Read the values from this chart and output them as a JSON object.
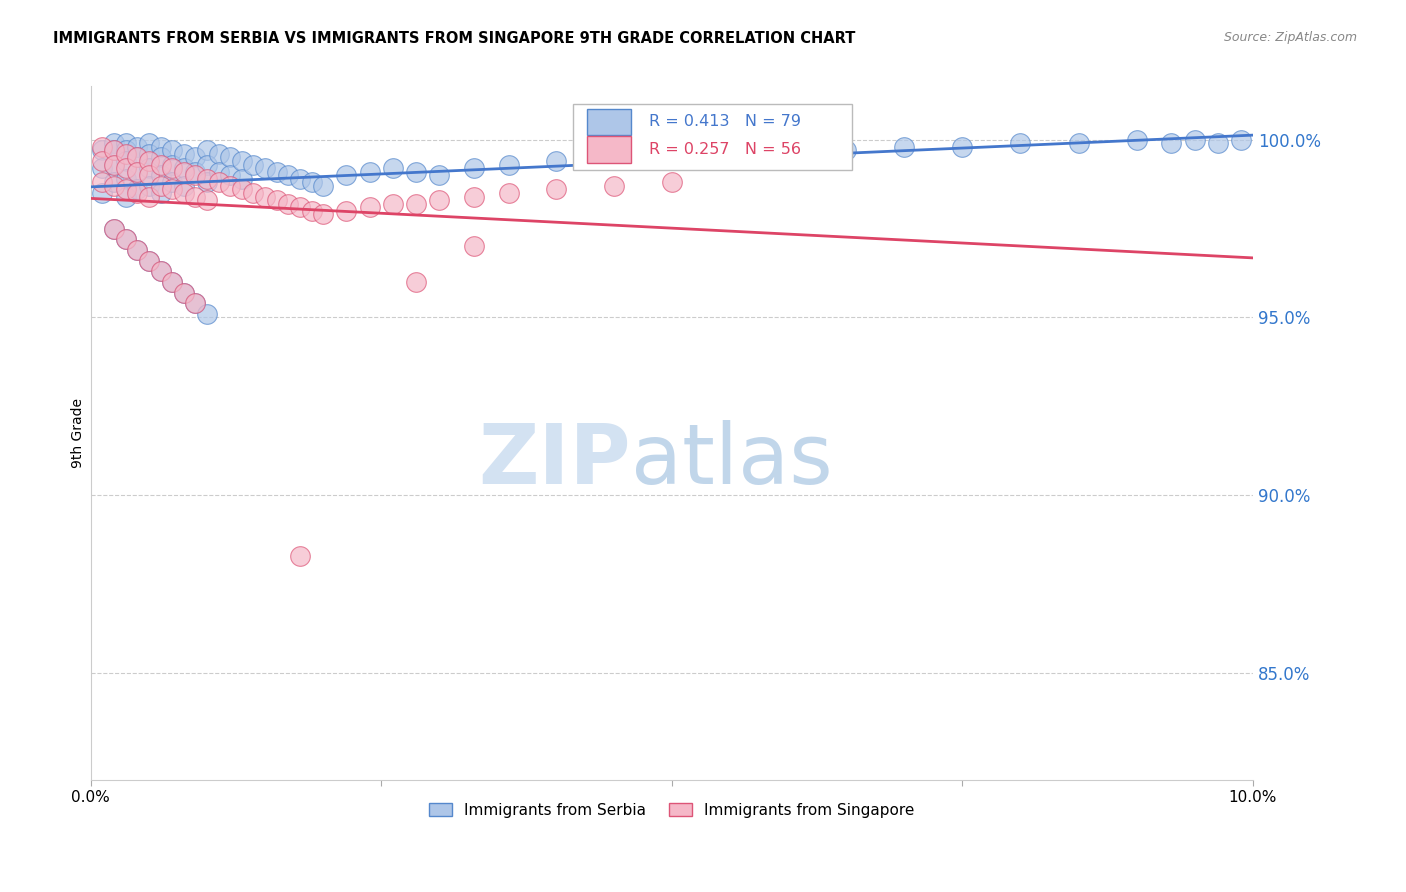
{
  "title": "IMMIGRANTS FROM SERBIA VS IMMIGRANTS FROM SINGAPORE 9TH GRADE CORRELATION CHART",
  "source": "Source: ZipAtlas.com",
  "ylabel": "9th Grade",
  "yticks": [
    "100.0%",
    "95.0%",
    "90.0%",
    "85.0%"
  ],
  "ytick_vals": [
    1.0,
    0.95,
    0.9,
    0.85
  ],
  "xlim": [
    0.0,
    0.1
  ],
  "ylim": [
    0.82,
    1.015
  ],
  "serbia_color": "#aec6e8",
  "singapore_color": "#f5b8c8",
  "serbia_edge": "#5588cc",
  "singapore_edge": "#dd5577",
  "trend_serbia": "#4477cc",
  "trend_singapore": "#dd4466",
  "serbia_R": 0.413,
  "serbia_N": 79,
  "singapore_R": 0.257,
  "singapore_N": 56,
  "serbia_x": [
    0.001,
    0.001,
    0.001,
    0.002,
    0.002,
    0.002,
    0.002,
    0.003,
    0.003,
    0.003,
    0.003,
    0.003,
    0.004,
    0.004,
    0.004,
    0.004,
    0.005,
    0.005,
    0.005,
    0.005,
    0.006,
    0.006,
    0.006,
    0.006,
    0.007,
    0.007,
    0.007,
    0.008,
    0.008,
    0.008,
    0.009,
    0.009,
    0.01,
    0.01,
    0.01,
    0.011,
    0.011,
    0.012,
    0.012,
    0.013,
    0.013,
    0.014,
    0.015,
    0.016,
    0.017,
    0.018,
    0.019,
    0.02,
    0.022,
    0.024,
    0.026,
    0.028,
    0.03,
    0.033,
    0.036,
    0.04,
    0.045,
    0.05,
    0.055,
    0.06,
    0.065,
    0.07,
    0.075,
    0.08,
    0.085,
    0.09,
    0.093,
    0.095,
    0.097,
    0.099,
    0.002,
    0.003,
    0.004,
    0.005,
    0.006,
    0.007,
    0.008,
    0.009,
    0.01
  ],
  "serbia_y": [
    0.997,
    0.992,
    0.985,
    0.999,
    0.997,
    0.993,
    0.988,
    0.999,
    0.997,
    0.994,
    0.989,
    0.984,
    0.998,
    0.995,
    0.991,
    0.986,
    0.999,
    0.996,
    0.992,
    0.987,
    0.998,
    0.995,
    0.99,
    0.985,
    0.997,
    0.993,
    0.988,
    0.996,
    0.992,
    0.987,
    0.995,
    0.991,
    0.997,
    0.993,
    0.988,
    0.996,
    0.991,
    0.995,
    0.99,
    0.994,
    0.989,
    0.993,
    0.992,
    0.991,
    0.99,
    0.989,
    0.988,
    0.987,
    0.99,
    0.991,
    0.992,
    0.991,
    0.99,
    0.992,
    0.993,
    0.994,
    0.995,
    0.996,
    0.997,
    0.997,
    0.997,
    0.998,
    0.998,
    0.999,
    0.999,
    1.0,
    0.999,
    1.0,
    0.999,
    1.0,
    0.975,
    0.972,
    0.969,
    0.966,
    0.963,
    0.96,
    0.957,
    0.954,
    0.951
  ],
  "singapore_x": [
    0.001,
    0.001,
    0.001,
    0.002,
    0.002,
    0.002,
    0.003,
    0.003,
    0.003,
    0.004,
    0.004,
    0.004,
    0.005,
    0.005,
    0.005,
    0.006,
    0.006,
    0.007,
    0.007,
    0.008,
    0.008,
    0.009,
    0.009,
    0.01,
    0.01,
    0.011,
    0.012,
    0.013,
    0.014,
    0.015,
    0.016,
    0.017,
    0.018,
    0.019,
    0.02,
    0.022,
    0.024,
    0.026,
    0.028,
    0.03,
    0.033,
    0.036,
    0.04,
    0.045,
    0.05,
    0.002,
    0.003,
    0.004,
    0.005,
    0.006,
    0.007,
    0.008,
    0.009,
    0.028,
    0.033,
    0.018
  ],
  "singapore_y": [
    0.998,
    0.994,
    0.988,
    0.997,
    0.993,
    0.987,
    0.996,
    0.992,
    0.986,
    0.995,
    0.991,
    0.985,
    0.994,
    0.99,
    0.984,
    0.993,
    0.987,
    0.992,
    0.986,
    0.991,
    0.985,
    0.99,
    0.984,
    0.989,
    0.983,
    0.988,
    0.987,
    0.986,
    0.985,
    0.984,
    0.983,
    0.982,
    0.981,
    0.98,
    0.979,
    0.98,
    0.981,
    0.982,
    0.982,
    0.983,
    0.984,
    0.985,
    0.986,
    0.987,
    0.988,
    0.975,
    0.972,
    0.969,
    0.966,
    0.963,
    0.96,
    0.957,
    0.954,
    0.96,
    0.97,
    0.883
  ]
}
